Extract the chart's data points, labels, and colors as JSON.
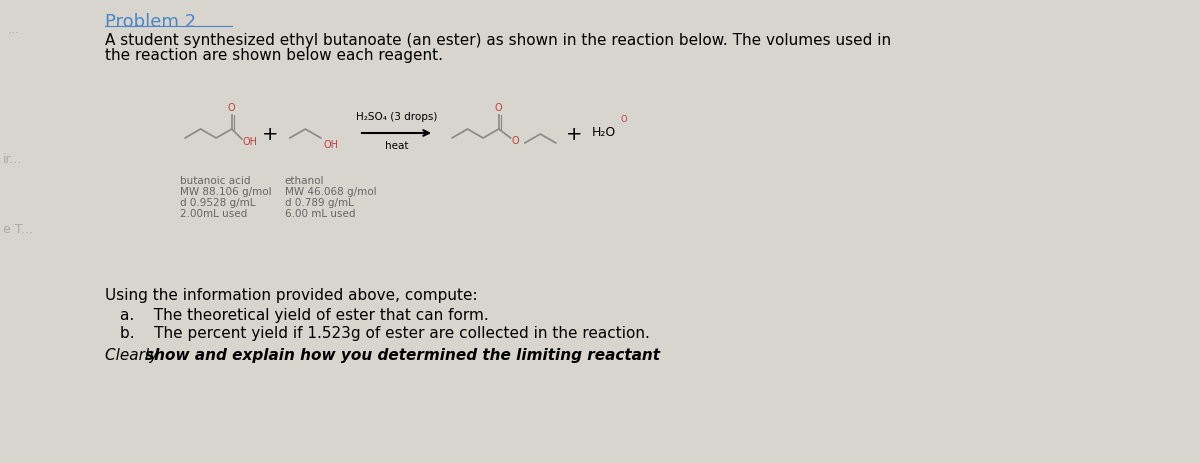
{
  "background_color": "#d8d4ce",
  "title": "Problem 2",
  "title_color": "#4a86c8",
  "title_fontsize": 13,
  "body_line1": "A student synthesized ethyl butanoate (an ester) as shown in the reaction below. The volumes used in",
  "body_line2": "the reaction are shown below each reagent.",
  "body_fontsize": 11,
  "reagent1_name": "butanoic acid",
  "reagent1_mw": "MW 88.106 g/mol",
  "reagent1_density": "d 0.9528 g/mL",
  "reagent1_volume": "2.00mL used",
  "reagent2_name": "ethanol",
  "reagent2_mw": "MW 46.068 g/mol",
  "reagent2_density": "d 0.789 g/mL",
  "reagent2_volume": "6.00 mL used",
  "catalyst": "H₂SO₄ (3 drops)",
  "condition": "heat",
  "using_text": "Using the information provided above, compute:",
  "part_a": "a.    The theoretical yield of ester that can form.",
  "part_b": "b.    The percent yield if 1.523g of ester are collected in the reaction.",
  "clearly_plain": "Clearly ",
  "clearly_bold": "show and explain how you determined the limiting reactant",
  "clearly_end": ".",
  "question_fontsize": 11,
  "label_fontsize": 7.5,
  "struct_color": "#888888",
  "red_color": "#c04040",
  "label_color": "#666666",
  "left_dots": "...",
  "left_label_ir": "ir...",
  "left_label_eT": "e T..."
}
